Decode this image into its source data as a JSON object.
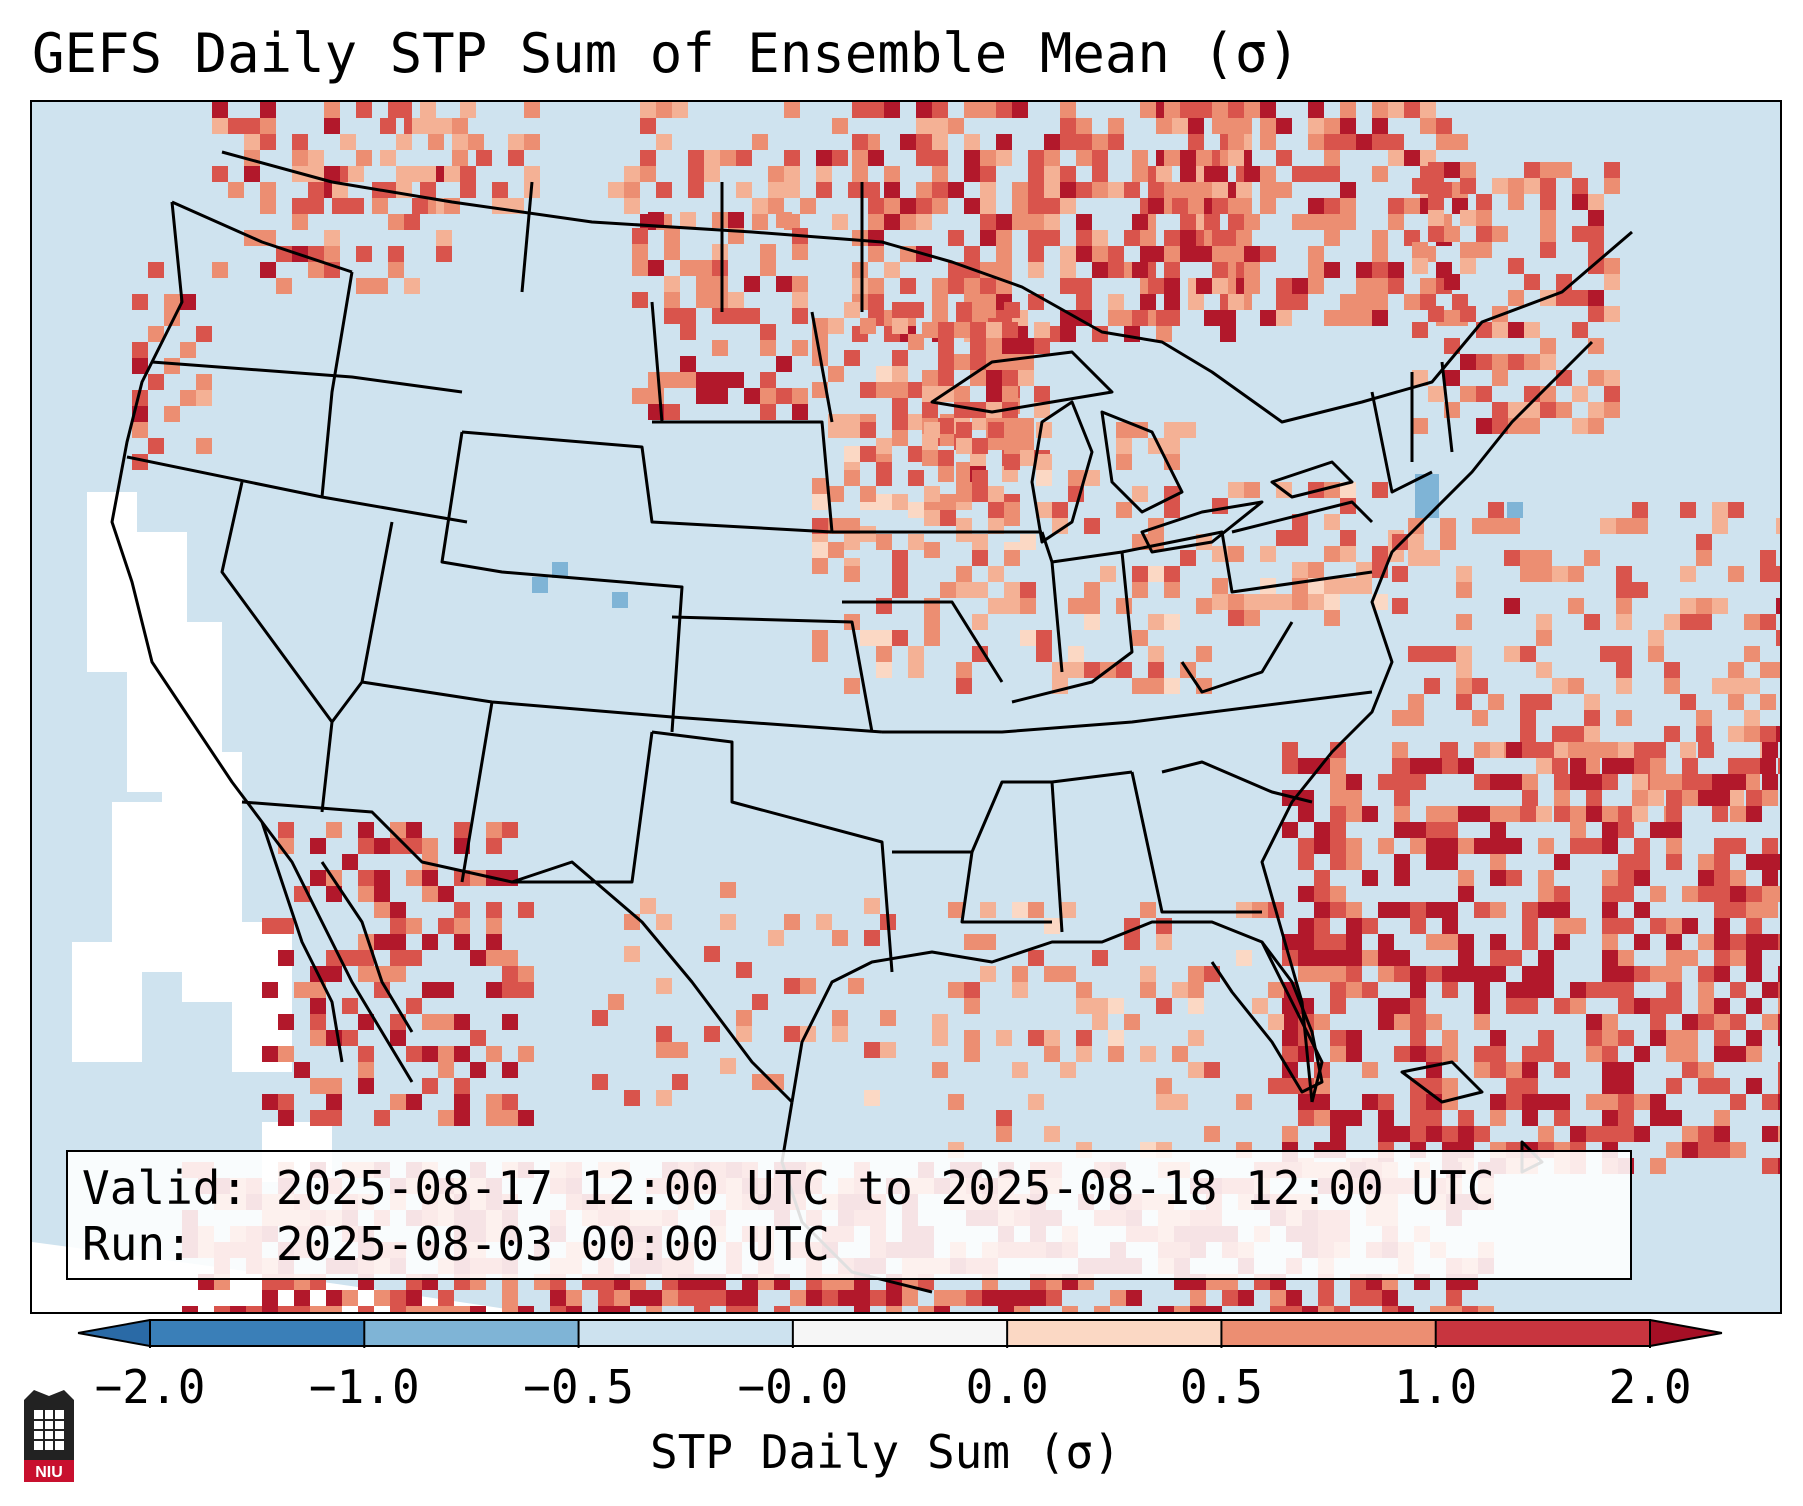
{
  "title": "GEFS Daily STP Sum of Ensemble Mean (σ)",
  "info": {
    "valid_label": "Valid:",
    "valid_value": "2025-08-17 12:00 UTC to 2025-08-18 12:00 UTC",
    "run_label": "Run:",
    "run_value": "2025-08-03 00:00 UTC"
  },
  "colorbar": {
    "label": "STP Daily Sum (σ)",
    "ticks": [
      "−2.0",
      "−1.0",
      "−0.5",
      "−0.0",
      "0.0",
      "0.5",
      "1.0",
      "2.0"
    ],
    "colors": [
      "#3a7fb8",
      "#7fb4d6",
      "#cde2ef",
      "#f6f6f6",
      "#fbd8c4",
      "#ec8e72",
      "#c8353f",
      "#a50f25"
    ]
  },
  "map": {
    "background_color": "#cfe3ef",
    "land_border_color": "#000000",
    "region": "Contiguous United States"
  },
  "logo": {
    "text": "NIU"
  }
}
